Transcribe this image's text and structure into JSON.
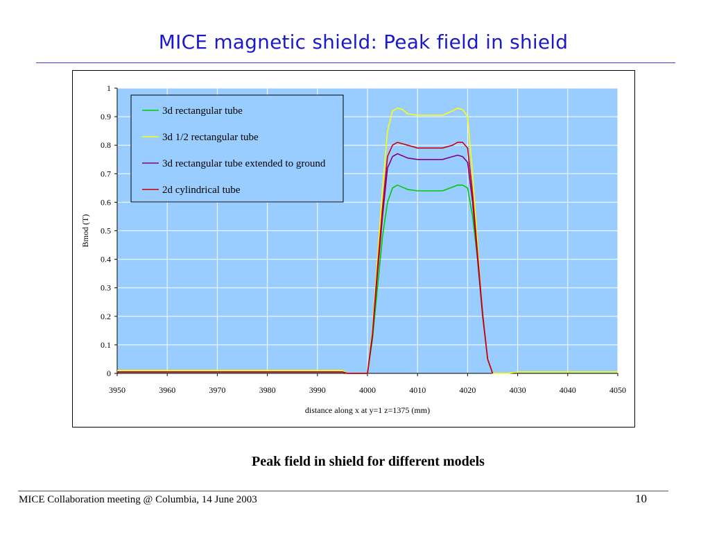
{
  "slide": {
    "title": "MICE magnetic shield: Peak field in shield",
    "caption": "Peak field in shield for different models",
    "footer": "MICE Collaboration meeting @ Columbia, 14 June 2003",
    "page_number": "10"
  },
  "chart_data": {
    "type": "line",
    "title": "",
    "xlabel": "distance along x at y=1 z=1375 (mm)",
    "ylabel": "Bmod (T)",
    "xlim": [
      3950,
      4050
    ],
    "ylim": [
      0,
      1
    ],
    "xticks": [
      3950,
      3960,
      3970,
      3980,
      3990,
      4000,
      4010,
      4020,
      4030,
      4040,
      4050
    ],
    "yticks": [
      0,
      0.1,
      0.2,
      0.3,
      0.4,
      0.5,
      0.6,
      0.7,
      0.8,
      0.9,
      1
    ],
    "grid": true,
    "plot_background": "#99ccff",
    "legend_position": "top-left",
    "series": [
      {
        "name": "3d rectangular tube",
        "color": "#00cc00",
        "x": [
          3950,
          3995,
          3996,
          4000,
          4001,
          4002,
          4003,
          4004,
          4005,
          4006,
          4008,
          4010,
          4015,
          4018,
          4019,
          4020,
          4021,
          4022,
          4023,
          4024,
          4025
        ],
        "y": [
          0.005,
          0.005,
          0.0,
          0.0,
          0.12,
          0.3,
          0.48,
          0.6,
          0.65,
          0.66,
          0.645,
          0.64,
          0.64,
          0.66,
          0.66,
          0.65,
          0.55,
          0.4,
          0.2,
          0.05,
          0.0
        ]
      },
      {
        "name": "3d 1/2 rectangular tube",
        "color": "#ffff00",
        "x": [
          3950,
          3995,
          3996,
          4000,
          4001,
          4002,
          4003,
          4004,
          4005,
          4006,
          4007,
          4008,
          4010,
          4015,
          4017,
          4018,
          4019,
          4020,
          4021,
          4022,
          4023,
          4024,
          4025,
          4028,
          4030,
          4050
        ],
        "y": [
          0.01,
          0.01,
          0.0,
          0.0,
          0.15,
          0.4,
          0.65,
          0.85,
          0.92,
          0.93,
          0.925,
          0.91,
          0.905,
          0.905,
          0.92,
          0.93,
          0.925,
          0.9,
          0.7,
          0.45,
          0.2,
          0.05,
          0.0,
          0.0,
          0.005,
          0.005
        ]
      },
      {
        "name": "3d rectangular tube extended to ground",
        "color": "#800080",
        "x": [
          3950,
          3995,
          3996,
          4000,
          4001,
          4002,
          4003,
          4004,
          4005,
          4006,
          4008,
          4010,
          4015,
          4017,
          4018,
          4019,
          4020,
          4021,
          4022,
          4023,
          4024,
          4025
        ],
        "y": [
          0.005,
          0.005,
          0.0,
          0.0,
          0.13,
          0.35,
          0.55,
          0.72,
          0.76,
          0.77,
          0.755,
          0.75,
          0.75,
          0.76,
          0.765,
          0.76,
          0.74,
          0.6,
          0.4,
          0.2,
          0.05,
          0.0
        ]
      },
      {
        "name": "2d cylindrical tube",
        "color": "#cc0000",
        "x": [
          3950,
          3995,
          3996,
          4000,
          4001,
          4002,
          4003,
          4004,
          4005,
          4006,
          4008,
          4010,
          4015,
          4017,
          4018,
          4019,
          4020,
          4021,
          4022,
          4023,
          4024,
          4025
        ],
        "y": [
          0.005,
          0.005,
          0.0,
          0.0,
          0.14,
          0.37,
          0.58,
          0.76,
          0.8,
          0.81,
          0.8,
          0.79,
          0.79,
          0.8,
          0.81,
          0.81,
          0.79,
          0.63,
          0.42,
          0.21,
          0.05,
          0.0
        ]
      }
    ]
  }
}
